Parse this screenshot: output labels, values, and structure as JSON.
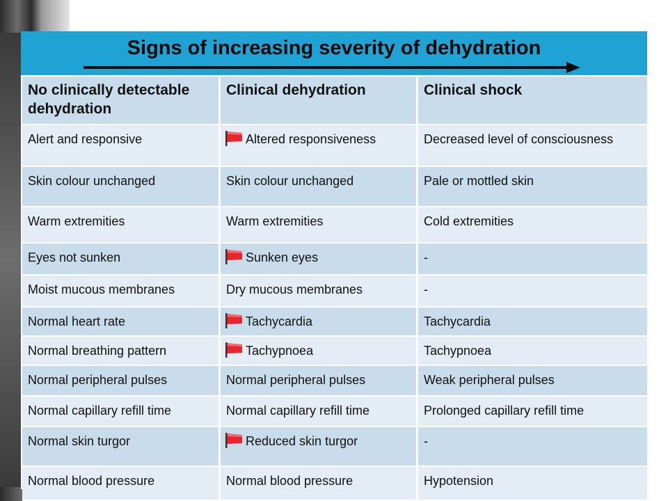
{
  "title": "Signs of increasing severity of dehydration",
  "colors": {
    "title_bar": "#1fa3d4",
    "row_dark": "#c9dceb",
    "row_light": "#e4edf5",
    "flag": "#e8252e"
  },
  "columns": [
    "No clinically detectable dehydration",
    "Clinical dehydration",
    "Clinical shock"
  ],
  "rows": [
    {
      "c1": "Alert and responsive",
      "c2": "Altered responsiveness",
      "c2_flag": true,
      "c3": "Decreased level of consciousness"
    },
    {
      "c1": "Skin colour unchanged",
      "c2": "Skin colour unchanged",
      "c2_flag": false,
      "c3": "Pale or mottled skin"
    },
    {
      "c1": "Warm extremities",
      "c2": "Warm extremities",
      "c2_flag": false,
      "c3": "Cold extremities"
    },
    {
      "c1": "Eyes not sunken",
      "c2": "Sunken eyes",
      "c2_flag": true,
      "c3": "-"
    },
    {
      "c1": "Moist mucous membranes",
      "c2": "Dry mucous membranes",
      "c2_flag": false,
      "c3": "-"
    },
    {
      "c1": "Normal heart rate",
      "c2": "Tachycardia",
      "c2_flag": true,
      "c3": "Tachycardia"
    },
    {
      "c1": "Normal breathing pattern",
      "c2": "Tachypnoea",
      "c2_flag": true,
      "c3": "Tachypnoea"
    },
    {
      "c1": "Normal peripheral pulses",
      "c2": "Normal peripheral pulses",
      "c2_flag": false,
      "c3": "Weak peripheral pulses"
    },
    {
      "c1": "Normal capillary refill time",
      "c2": "Normal capillary refill time",
      "c2_flag": false,
      "c3": "Prolonged capillary refill time"
    },
    {
      "c1": "Normal skin turgor",
      "c2": "Reduced skin turgor",
      "c2_flag": true,
      "c3": "-"
    },
    {
      "c1": "Normal blood pressure",
      "c2": "Normal blood pressure",
      "c2_flag": false,
      "c3": "Hypotension"
    }
  ]
}
